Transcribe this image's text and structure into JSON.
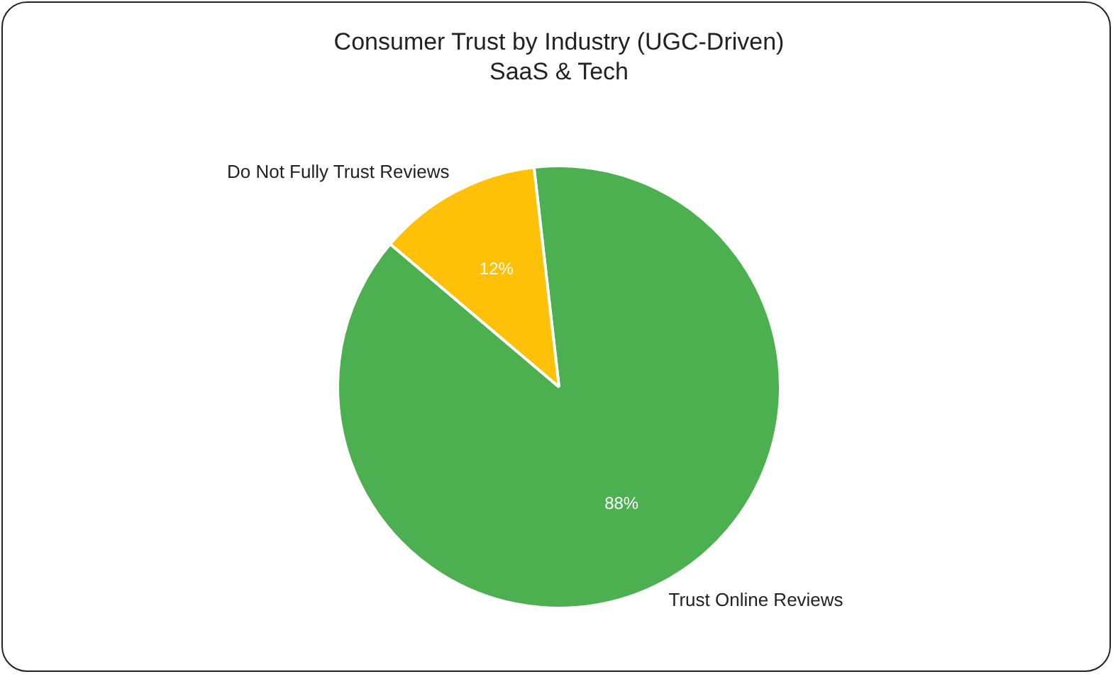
{
  "chart_data": {
    "type": "pie",
    "title": "Consumer Trust by Industry (UGC-Driven)",
    "subtitle": "SaaS & Tech",
    "categories": [
      "Trust Online Reviews",
      "Do Not Fully Trust Reviews"
    ],
    "values": [
      88,
      12
    ],
    "colors": [
      "#4caf50",
      "#ffc107"
    ],
    "value_labels": [
      "88%",
      "12%"
    ],
    "legend": false
  }
}
